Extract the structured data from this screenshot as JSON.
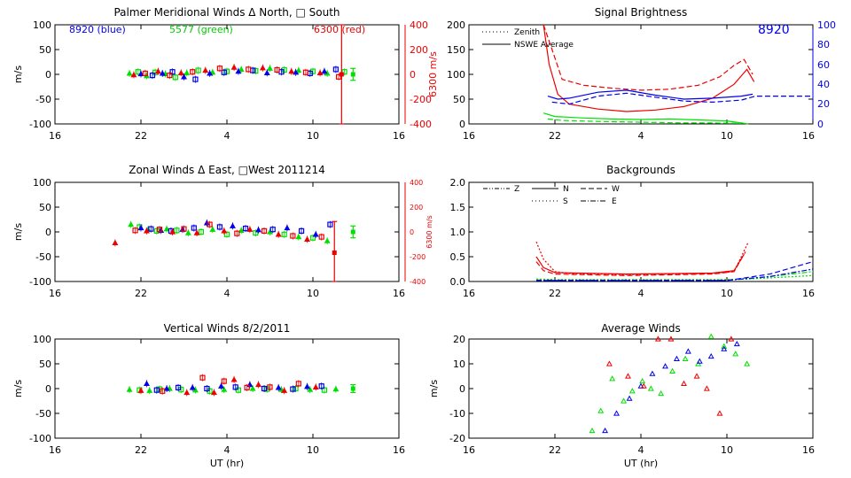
{
  "panels": {
    "meridional": {
      "title": "Palmer Meridional Winds Δ North, □ South",
      "ylabel": "m/s",
      "ylim": [
        -100,
        100
      ],
      "yticks": [
        "100",
        "50",
        "0",
        "-50",
        "-100"
      ],
      "right_axis": {
        "label": "6300 m/s",
        "ylim": [
          -400,
          400
        ],
        "ticks": [
          "400",
          "200",
          "0",
          "-200",
          "-400"
        ]
      },
      "legend": {
        "blue": "8920 (blue)",
        "green": "5577 (green)",
        "red": "6300 (red)"
      },
      "xticks": [
        "16",
        "22",
        "4",
        "10",
        "16"
      ]
    },
    "zonal": {
      "title": "Zonal Winds Δ East, □West 2011214",
      "ylabel": "m/s",
      "ylim": [
        -100,
        100
      ],
      "yticks": [
        "100",
        "50",
        "0",
        "-50",
        "-100"
      ],
      "right_axis": {
        "label": "6300 m/s",
        "ylim": [
          -400,
          400
        ],
        "ticks": [
          "400",
          "200",
          "0",
          "-200",
          "-400"
        ]
      },
      "xticks": [
        "16",
        "22",
        "4",
        "10",
        "16"
      ]
    },
    "vertical": {
      "title": "Vertical Winds 8/2/2011",
      "ylabel": "m/s",
      "xlabel": "UT (hr)",
      "ylim": [
        -100,
        100
      ],
      "yticks": [
        "100",
        "50",
        "0",
        "-50",
        "-100"
      ],
      "xticks": [
        "16",
        "22",
        "4",
        "10",
        "16"
      ]
    },
    "brightness": {
      "title": "Signal Brightness",
      "ylim": [
        0,
        200
      ],
      "yticks": [
        "200",
        "150",
        "100",
        "50",
        "0"
      ],
      "right_axis": {
        "label": "8920",
        "ylim": [
          0,
          100
        ],
        "ticks": [
          "100",
          "80",
          "60",
          "40",
          "20",
          "0"
        ]
      },
      "legend": {
        "zenith": "Zenith",
        "average": "NSWE Average"
      },
      "xticks": [
        "16",
        "22",
        "4",
        "10",
        "16"
      ]
    },
    "backgrounds": {
      "title": "Backgrounds",
      "ylim": [
        0,
        2
      ],
      "yticks": [
        "2.0",
        "1.5",
        "1.0",
        "0.5",
        "0.0"
      ],
      "legend": {
        "z": "Z",
        "n": "N",
        "w": "W",
        "s": "S",
        "e": "E"
      },
      "xticks": [
        "16",
        "22",
        "4",
        "10",
        "16"
      ]
    },
    "average": {
      "title": "Average Winds",
      "ylabel": "m/s",
      "xlabel": "UT (hr)",
      "ylim": [
        -20,
        20
      ],
      "yticks": [
        "20",
        "10",
        "0",
        "-10",
        "-20"
      ],
      "xticks": [
        "16",
        "22",
        "4",
        "10",
        "16"
      ]
    }
  },
  "chart_data": [
    {
      "id": "meridional",
      "type": "scatter",
      "xlim": [
        16,
        40
      ],
      "series": [
        {
          "name": "5577 (green)",
          "color": "#00e000",
          "x": [
            21.2,
            21.8,
            22.4,
            23.0,
            23.7,
            24.4,
            25.2,
            26.0,
            27.0,
            28.0,
            29.0,
            30.0,
            31.0,
            32.0,
            33.0,
            34.0,
            35.0,
            36.2
          ],
          "y": [
            2,
            5,
            -3,
            4,
            1,
            -6,
            3,
            8,
            4,
            6,
            10,
            7,
            12,
            9,
            8,
            6,
            2,
            5
          ]
        },
        {
          "name": "8920 (blue)",
          "color": "#0000ee",
          "x": [
            22.0,
            22.8,
            23.5,
            24.2,
            25.0,
            25.8,
            26.8,
            27.8,
            28.8,
            29.8,
            30.8,
            31.8,
            32.8,
            33.8,
            34.8,
            35.6
          ],
          "y": [
            1,
            -2,
            2,
            5,
            -5,
            -10,
            2,
            4,
            6,
            8,
            3,
            5,
            4,
            2,
            6,
            10
          ]
        },
        {
          "name": "6300 (red)",
          "color": "#ee0000",
          "x": [
            21.5,
            22.3,
            23.2,
            24.0,
            24.8,
            25.6,
            26.5,
            27.5,
            28.5,
            29.5,
            30.5,
            31.5,
            32.5,
            33.5,
            34.5,
            35.8
          ],
          "y": [
            -1,
            2,
            6,
            -2,
            3,
            5,
            8,
            12,
            14,
            10,
            13,
            9,
            6,
            4,
            3,
            -5
          ]
        },
        {
          "name": "6300 error bar",
          "color": "#ee0000",
          "x": [
            36.0
          ],
          "y": [
            0
          ],
          "err": [
            100
          ]
        },
        {
          "name": "5577 average",
          "color": "#00e000",
          "x": [
            36.8
          ],
          "y": [
            0
          ],
          "err": [
            12
          ]
        }
      ]
    },
    {
      "id": "zonal",
      "type": "scatter",
      "xlim": [
        16,
        40
      ],
      "series": [
        {
          "name": "5577 (green)",
          "color": "#00e000",
          "x": [
            21.3,
            21.9,
            22.5,
            23.1,
            23.8,
            24.5,
            25.3,
            26.2,
            27.0,
            28.0,
            29.0,
            30.0,
            31.0,
            32.0,
            33.0,
            34.0,
            35.0
          ],
          "y": [
            15,
            10,
            5,
            2,
            6,
            3,
            -2,
            0,
            5,
            -5,
            3,
            -2,
            0,
            -5,
            -10,
            -12,
            -18
          ]
        },
        {
          "name": "8920 (blue)",
          "color": "#0000ee",
          "x": [
            22.0,
            22.7,
            23.4,
            24.1,
            24.9,
            25.7,
            26.6,
            27.5,
            28.4,
            29.3,
            30.2,
            31.2,
            32.2,
            33.2,
            34.2,
            35.2
          ],
          "y": [
            8,
            6,
            3,
            2,
            5,
            8,
            18,
            10,
            12,
            7,
            4,
            5,
            8,
            2,
            -5,
            15
          ]
        },
        {
          "name": "6300 (red)",
          "color": "#ee0000",
          "x": [
            20.2,
            21.6,
            22.4,
            23.3,
            24.2,
            25.0,
            25.9,
            26.8,
            27.8,
            28.7,
            29.6,
            30.6,
            31.6,
            32.6,
            33.6,
            34.6
          ],
          "y": [
            -22,
            3,
            2,
            5,
            0,
            6,
            -2,
            15,
            2,
            -3,
            5,
            2,
            -5,
            -8,
            -15,
            -10
          ]
        },
        {
          "name": "6300 error bar",
          "color": "#ee0000",
          "x": [
            35.5
          ],
          "y": [
            -42
          ],
          "err": [
            63
          ]
        },
        {
          "name": "5577 average",
          "color": "#00e000",
          "x": [
            36.8
          ],
          "y": [
            0
          ],
          "err": [
            12
          ]
        }
      ]
    },
    {
      "id": "vertical",
      "type": "scatter",
      "xlim": [
        16,
        40
      ],
      "series": [
        {
          "name": "5577 (green)",
          "color": "#00e000",
          "x": [
            21.2,
            21.9,
            22.6,
            23.3,
            24.0,
            24.8,
            25.8,
            26.8,
            27.8,
            28.8,
            29.8,
            30.8,
            31.8,
            32.8,
            33.8,
            34.8,
            35.6
          ],
          "y": [
            -2,
            -3,
            -4,
            -1,
            0,
            -2,
            -3,
            -5,
            -2,
            -3,
            0,
            -1,
            -2,
            0,
            -2,
            -3,
            -1
          ]
        },
        {
          "name": "8920 (blue)",
          "color": "#0000ee",
          "x": [
            22.4,
            23.1,
            23.8,
            24.6,
            25.6,
            26.6,
            27.6,
            28.6,
            29.6,
            30.6,
            31.6,
            32.6,
            33.6,
            34.6
          ],
          "y": [
            10,
            -3,
            0,
            2,
            2,
            0,
            5,
            3,
            8,
            0,
            2,
            -1,
            4,
            5
          ]
        },
        {
          "name": "6300 (red)",
          "color": "#ee0000",
          "x": [
            22.0,
            23.5,
            25.2,
            26.3,
            27.1,
            27.8,
            28.5,
            29.4,
            30.2,
            31.0,
            32.0,
            33.0,
            34.2
          ],
          "y": [
            -4,
            -5,
            -8,
            22,
            -8,
            15,
            18,
            2,
            8,
            3,
            -4,
            10,
            3
          ]
        },
        {
          "name": "5577 average",
          "color": "#00e000",
          "x": [
            36.8
          ],
          "y": [
            0
          ],
          "err": [
            8
          ]
        }
      ]
    },
    {
      "id": "brightness",
      "type": "line",
      "xlim": [
        16,
        40
      ],
      "series": [
        {
          "name": "Zenith red",
          "color": "#ee0000",
          "dash": "6,3",
          "x": [
            21.2,
            21.8,
            22.5,
            24,
            26,
            28,
            30,
            32,
            33.5,
            34.5,
            35.2,
            35.8
          ],
          "y": [
            200,
            150,
            90,
            78,
            72,
            68,
            70,
            78,
            95,
            118,
            130,
            100
          ]
        },
        {
          "name": "NSWE Average red",
          "color": "#ee0000",
          "dash": "",
          "x": [
            21.2,
            21.6,
            22.2,
            23,
            25,
            27,
            29,
            31,
            33,
            34.5,
            35.4,
            35.9
          ],
          "y": [
            200,
            120,
            60,
            40,
            30,
            25,
            28,
            35,
            52,
            80,
            110,
            85
          ]
        },
        {
          "name": "NSWE Average green",
          "color": "#00e000",
          "dash": "",
          "x": [
            21.2,
            22,
            24,
            26,
            28,
            30,
            32,
            34,
            35.5
          ],
          "y": [
            22,
            15,
            12,
            10,
            9,
            10,
            8,
            6,
            0
          ]
        },
        {
          "name": "Zenith green",
          "color": "#00e000",
          "dash": "6,3",
          "x": [
            21.5,
            22.5,
            25,
            27,
            29,
            31,
            33,
            35
          ],
          "y": [
            10,
            7,
            5,
            4,
            3,
            2,
            2,
            1
          ]
        },
        {
          "name": "8920 NSWE Average",
          "color": "#0000ee",
          "dash": "",
          "axis": "right",
          "x": [
            21.5,
            22.2,
            23,
            25,
            27,
            29,
            31,
            33,
            35,
            35.8
          ],
          "y": [
            28,
            25,
            26,
            32,
            34,
            29,
            25,
            26,
            28,
            30
          ]
        },
        {
          "name": "8920 Zenith",
          "color": "#0000ee",
          "dash": "6,3",
          "axis": "right",
          "x": [
            21.8,
            23,
            25,
            27,
            29,
            31,
            33,
            35,
            36,
            40
          ],
          "y": [
            22,
            20,
            28,
            31,
            27,
            23,
            22,
            24,
            28,
            28
          ]
        }
      ]
    },
    {
      "id": "backgrounds",
      "type": "line",
      "xlim": [
        16,
        40
      ],
      "series": [
        {
          "name": "Z red",
          "color": "#ee0000",
          "dash": "2,2",
          "x": [
            20.7,
            21.2,
            22,
            23,
            27,
            33,
            34.5,
            35.5
          ],
          "y": [
            0.8,
            0.45,
            0.2,
            0.16,
            0.14,
            0.16,
            0.2,
            0.8
          ]
        },
        {
          "name": "N red",
          "color": "#ee0000",
          "dash": "",
          "x": [
            20.7,
            21.2,
            22,
            27,
            33,
            34.5,
            35.2
          ],
          "y": [
            0.5,
            0.28,
            0.18,
            0.15,
            0.17,
            0.22,
            0.55
          ]
        },
        {
          "name": "W red",
          "color": "#ee0000",
          "dash": "6,3",
          "x": [
            20.7,
            21.2,
            22,
            27,
            33,
            34.5,
            35.3
          ],
          "y": [
            0.4,
            0.22,
            0.15,
            0.12,
            0.15,
            0.2,
            0.6
          ]
        },
        {
          "name": "S green",
          "color": "#00e000",
          "dash": "2,2",
          "x": [
            20.7,
            22,
            28,
            34,
            35.5,
            40
          ],
          "y": [
            0.05,
            0.04,
            0.04,
            0.04,
            0.05,
            0.12
          ]
        },
        {
          "name": "E green",
          "color": "#00e000",
          "dash": "6,2,2,2",
          "x": [
            20.7,
            22,
            28,
            34,
            35.5,
            40
          ],
          "y": [
            0.03,
            0.03,
            0.03,
            0.03,
            0.05,
            0.2
          ]
        },
        {
          "name": "W blue",
          "color": "#0000ee",
          "dash": "6,3",
          "x": [
            20.7,
            22,
            28,
            34,
            35,
            37,
            40
          ],
          "y": [
            0.02,
            0.02,
            0.02,
            0.02,
            0.06,
            0.15,
            0.4
          ]
        },
        {
          "name": "E blue",
          "color": "#0000ee",
          "dash": "6,2,2,2",
          "x": [
            20.7,
            22,
            28,
            34,
            35,
            37,
            40
          ],
          "y": [
            0.02,
            0.02,
            0.02,
            0.02,
            0.05,
            0.1,
            0.25
          ]
        }
      ]
    },
    {
      "id": "average",
      "type": "scatter",
      "xlim": [
        16,
        40
      ],
      "series": [
        {
          "name": "green",
          "color": "#00e000",
          "x": [
            24.6,
            25.2,
            26.0,
            26.8,
            27.4,
            28.1,
            28.7,
            29.4,
            30.2,
            31.1,
            32.0,
            32.9,
            33.8,
            34.6,
            35.4
          ],
          "y": [
            -17,
            -9,
            4,
            -5,
            -1,
            3,
            0,
            -2,
            7,
            12,
            10,
            21,
            17,
            14,
            10
          ]
        },
        {
          "name": "blue",
          "color": "#0000ee",
          "x": [
            25.5,
            26.3,
            27.2,
            28.0,
            28.8,
            29.7,
            30.5,
            31.3,
            32.1,
            32.9,
            33.8,
            34.7
          ],
          "y": [
            -17,
            -10,
            -4,
            1,
            6,
            9,
            12,
            15,
            11,
            13,
            16,
            18
          ]
        },
        {
          "name": "red",
          "color": "#ee0000",
          "x": [
            25.8,
            27.1,
            28.2,
            29.2,
            30.1,
            31.0,
            31.9,
            32.6,
            33.5,
            34.3
          ],
          "y": [
            10,
            5,
            1,
            20,
            20,
            2,
            5,
            0,
            -10,
            20
          ]
        }
      ]
    }
  ]
}
